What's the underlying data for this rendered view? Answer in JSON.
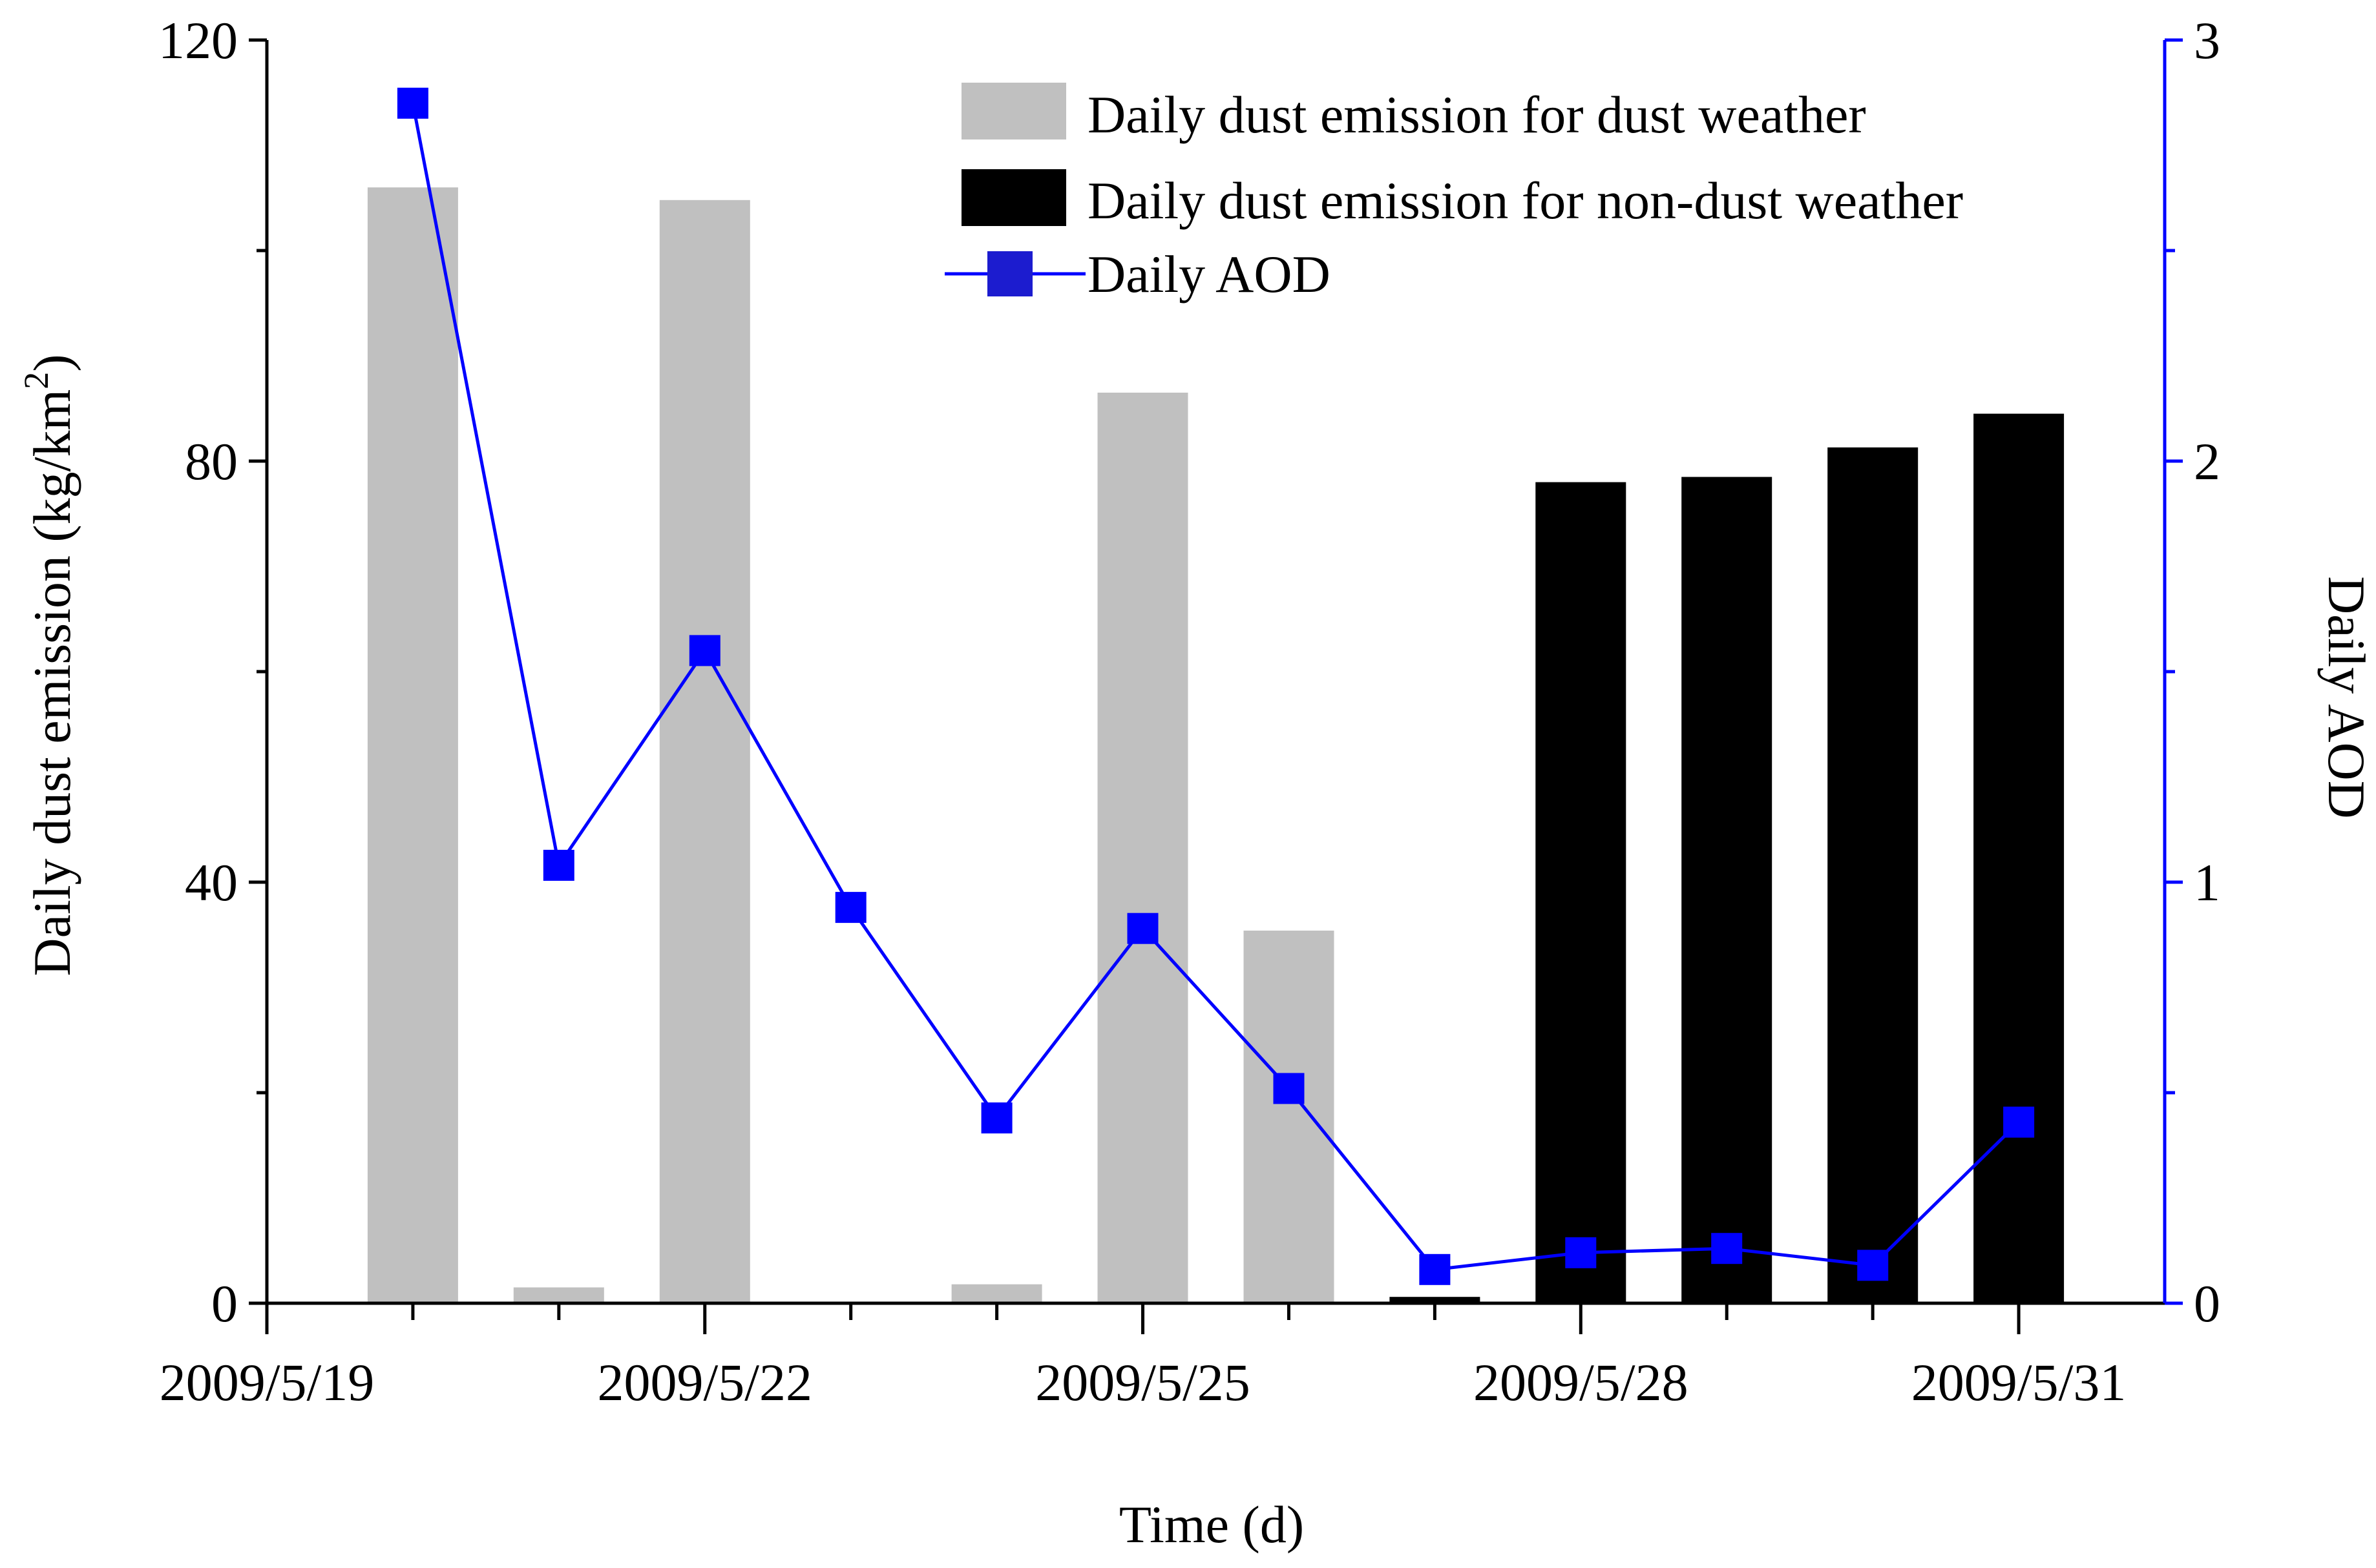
{
  "chart_data": {
    "type": "bar",
    "title": "",
    "xlabel": "Time (d)",
    "ylabel": "Daily dust emission (kg/km",
    "ylabel_superscript": "2",
    "ylabel_close": ")",
    "y2label": "Daily AOD",
    "ylim": [
      0,
      120
    ],
    "y2lim": [
      0,
      3
    ],
    "yticks": [
      "0",
      "40",
      "80",
      "120"
    ],
    "y2ticks": [
      "0",
      "1",
      "2",
      "3"
    ],
    "categories": [
      "2009/5/20",
      "2009/5/21",
      "2009/5/22",
      "2009/5/23",
      "2009/5/24",
      "2009/5/25",
      "2009/5/26",
      "2009/5/27",
      "2009/5/28",
      "2009/5/29",
      "2009/5/30",
      "2009/5/31"
    ],
    "xtick_labels": [
      "2009/5/19",
      "2009/5/22",
      "2009/5/25",
      "2009/5/28",
      "2009/5/31"
    ],
    "series": [
      {
        "name": "Daily dust emission for dust weather",
        "kind": "bar",
        "axis": "left",
        "color": "#c0c0c0",
        "values": [
          106,
          1.5,
          104.8,
          0,
          1.8,
          86.5,
          35.4,
          0,
          0,
          0,
          0,
          0
        ]
      },
      {
        "name": "Daily dust emission for non-dust weather",
        "kind": "bar",
        "axis": "left",
        "color": "#000000",
        "values": [
          0,
          0,
          0,
          0,
          0,
          0,
          0,
          0.6,
          78,
          78.5,
          81.3,
          84.5
        ]
      },
      {
        "name": "Daily AOD",
        "kind": "line",
        "axis": "right",
        "color": "#0000ff",
        "values": [
          2.85,
          1.04,
          1.55,
          0.94,
          0.44,
          0.89,
          0.51,
          0.08,
          0.12,
          0.13,
          0.09,
          0.43
        ]
      }
    ],
    "legend_position": "top-right"
  }
}
